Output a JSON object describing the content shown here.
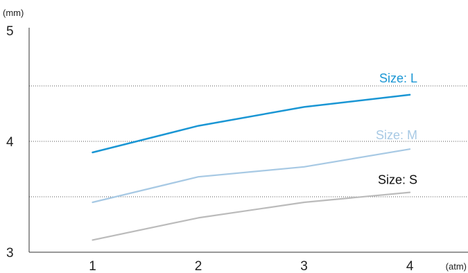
{
  "chart_data": {
    "type": "line",
    "x": [
      1,
      2,
      3,
      4
    ],
    "xlim": [
      0.4,
      4.55
    ],
    "ylim": [
      3,
      5
    ],
    "x_ticks": [
      "1",
      "2",
      "3",
      "4"
    ],
    "y_ticks": [
      "3",
      "4",
      "5"
    ],
    "x_unit": "(atm)",
    "y_unit": "(mm)",
    "grid": "dotted horizontal lines at 3.5, 4 and 4.5",
    "series": [
      {
        "name": "Size: L",
        "color": "#1a96d4",
        "values": [
          3.9,
          4.14,
          4.31,
          4.42
        ]
      },
      {
        "name": "Size: M",
        "color": "#a7c9e4",
        "values": [
          3.45,
          3.68,
          3.77,
          3.93
        ]
      },
      {
        "name": "Size: S",
        "color": "#bbbbbb",
        "label_color": "#111111",
        "values": [
          3.11,
          3.31,
          3.45,
          3.54
        ]
      }
    ]
  }
}
